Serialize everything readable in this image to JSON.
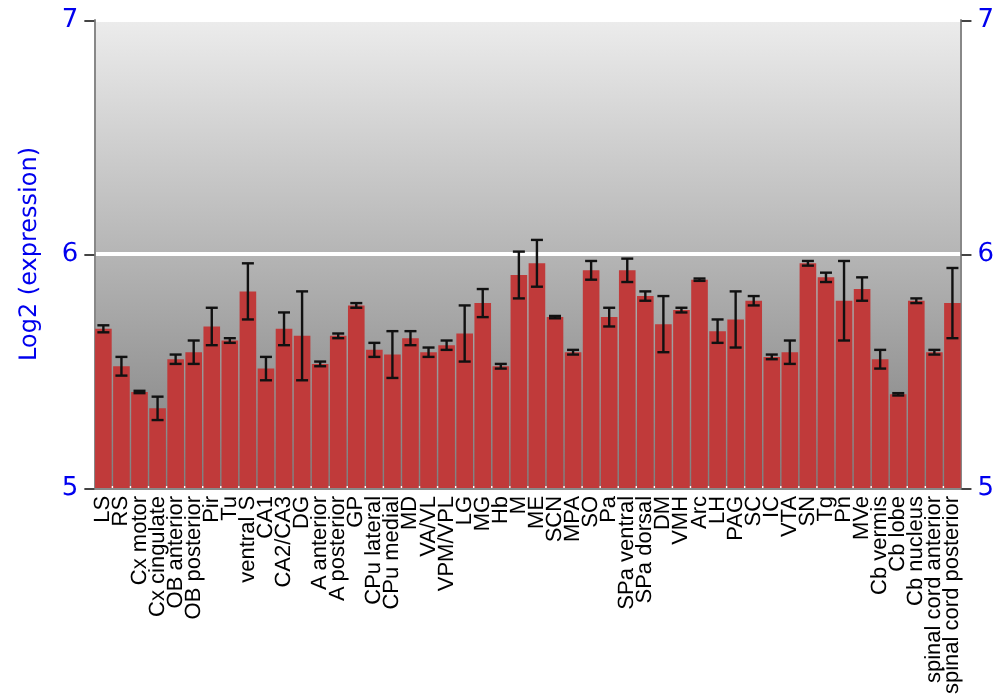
{
  "chart_data": {
    "type": "bar",
    "ylabel": "Log2 (expression)",
    "categories": [
      "LS",
      "RS",
      "Cx motor",
      "Cx cingulate",
      "OB anterior",
      "OB posterior",
      "Pir",
      "Tu",
      "ventral S",
      "CA1",
      "CA2/CA3",
      "DG",
      "A anterior",
      "A posterior",
      "GP",
      "CPu lateral",
      "CPu medial",
      "MD",
      "VA/VL",
      "VPM/VPL",
      "LG",
      "MG",
      "Hb",
      "M",
      "ME",
      "SCN",
      "MPA",
      "SO",
      "Pa",
      "SPa ventral",
      "SPa dorsal",
      "DM",
      "VMH",
      "Arc",
      "LH",
      "PAG",
      "SC",
      "IC",
      "VTA",
      "SN",
      "Tg",
      "Pn",
      "MVe",
      "Cb vermis",
      "Cb lobe",
      "Cb nucleus",
      "spinal cord anterior",
      "spinal cord posterior"
    ],
    "values": [
      5.68,
      5.52,
      5.41,
      5.34,
      5.55,
      5.58,
      5.69,
      5.63,
      5.84,
      5.51,
      5.68,
      5.65,
      5.53,
      5.65,
      5.78,
      5.59,
      5.57,
      5.64,
      5.58,
      5.61,
      5.66,
      5.79,
      5.52,
      5.91,
      5.96,
      5.73,
      5.58,
      5.93,
      5.73,
      5.93,
      5.82,
      5.7,
      5.76,
      5.89,
      5.67,
      5.72,
      5.8,
      5.56,
      5.58,
      5.96,
      5.9,
      5.8,
      5.85,
      5.55,
      5.4,
      5.8,
      5.58,
      5.79
    ],
    "errors": [
      0.015,
      0.04,
      0.005,
      0.05,
      0.02,
      0.05,
      0.08,
      0.01,
      0.12,
      0.05,
      0.07,
      0.19,
      0.01,
      0.01,
      0.01,
      0.03,
      0.1,
      0.03,
      0.02,
      0.02,
      0.12,
      0.06,
      0.01,
      0.1,
      0.1,
      0.005,
      0.01,
      0.04,
      0.04,
      0.05,
      0.02,
      0.12,
      0.01,
      0.005,
      0.05,
      0.12,
      0.02,
      0.01,
      0.05,
      0.01,
      0.02,
      0.17,
      0.05,
      0.04,
      0.005,
      0.01,
      0.01,
      0.15
    ],
    "color": "#c03a3a",
    "ylim": [
      5,
      7
    ],
    "yticks": [
      5,
      6,
      7
    ],
    "y2lim": [
      5,
      7
    ],
    "y2ticks": [
      5,
      6,
      7
    ],
    "grid": "y"
  }
}
